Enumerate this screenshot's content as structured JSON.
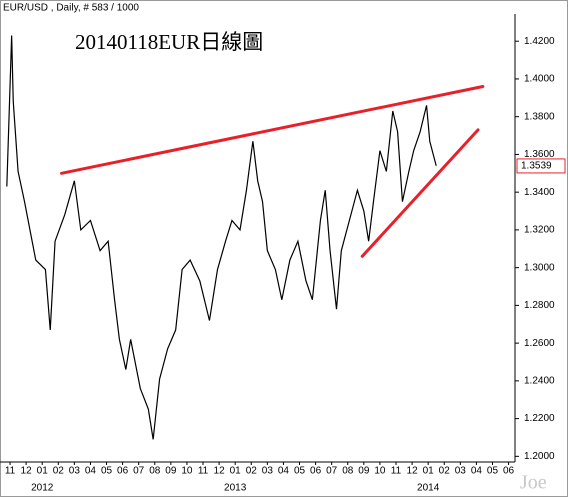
{
  "header": "EUR/USD , Daily, # 583 / 1000",
  "chart_data": {
    "type": "line",
    "title": "20140118EUR日線圖",
    "watermark": "Joe",
    "color": "#000000",
    "x": [
      -0.2,
      0.1,
      0.2,
      0.5,
      0.9,
      1.6,
      2.2,
      2.5,
      2.8,
      3.4,
      4.0,
      4.4,
      5.0,
      5.6,
      6.1,
      6.5,
      6.8,
      7.2,
      7.5,
      8.1,
      8.6,
      8.9,
      9.3,
      9.8,
      10.3,
      10.7,
      11.2,
      11.8,
      12.4,
      12.9,
      13.4,
      13.8,
      14.3,
      14.7,
      15.1,
      15.4,
      15.7,
      16.0,
      16.5,
      16.9,
      17.4,
      17.9,
      18.4,
      18.8,
      19.3,
      19.6,
      19.9,
      20.3,
      20.6,
      21.1,
      21.6,
      22.0,
      22.3,
      22.6,
      23.0,
      23.4,
      23.8,
      24.1,
      24.4,
      24.8,
      25.1,
      25.5,
      25.9,
      26.1,
      26.5
    ],
    "values": [
      1.343,
      1.423,
      1.388,
      1.351,
      1.335,
      1.304,
      1.299,
      1.267,
      1.314,
      1.328,
      1.346,
      1.32,
      1.325,
      1.309,
      1.314,
      1.283,
      1.262,
      1.246,
      1.262,
      1.236,
      1.225,
      1.209,
      1.241,
      1.257,
      1.267,
      1.299,
      1.304,
      1.293,
      1.272,
      1.299,
      1.314,
      1.325,
      1.32,
      1.341,
      1.367,
      1.346,
      1.335,
      1.309,
      1.299,
      1.283,
      1.304,
      1.314,
      1.293,
      1.283,
      1.325,
      1.341,
      1.309,
      1.278,
      1.309,
      1.325,
      1.341,
      1.33,
      1.314,
      1.335,
      1.362,
      1.351,
      1.383,
      1.372,
      1.335,
      1.351,
      1.362,
      1.372,
      1.386,
      1.367,
      1.354
    ],
    "last_price": 1.3539,
    "trend_color": "#e8202a",
    "trend_lines": [
      {
        "x": [
          3.2,
          29.4
        ],
        "values": [
          1.35,
          1.396
        ]
      },
      {
        "x": [
          21.9,
          29.1
        ],
        "values": [
          1.306,
          1.373
        ]
      }
    ],
    "xlim": [
      -0.5,
      31.4
    ],
    "ylim": [
      1.197,
      1.427
    ],
    "yticks": [
      {
        "value": 1.2,
        "label": "1.2000"
      },
      {
        "value": 1.22,
        "label": "1.2200"
      },
      {
        "value": 1.24,
        "label": "1.2400"
      },
      {
        "value": 1.26,
        "label": "1.2600"
      },
      {
        "value": 1.28,
        "label": "1.2800"
      },
      {
        "value": 1.3,
        "label": "1.3000"
      },
      {
        "value": 1.32,
        "label": "1.3200"
      },
      {
        "value": 1.34,
        "label": "1.3400"
      },
      {
        "value": 1.36,
        "label": "1.3600"
      },
      {
        "value": 1.38,
        "label": "1.3800"
      },
      {
        "value": 1.4,
        "label": "1.4000"
      },
      {
        "value": 1.42,
        "label": "1.4200"
      }
    ],
    "xticks": [
      {
        "value": 0,
        "label": "11"
      },
      {
        "value": 1,
        "label": "12"
      },
      {
        "value": 2,
        "label": "01"
      },
      {
        "value": 3,
        "label": "02"
      },
      {
        "value": 4,
        "label": "03"
      },
      {
        "value": 5,
        "label": "04"
      },
      {
        "value": 6,
        "label": "05"
      },
      {
        "value": 7,
        "label": "06"
      },
      {
        "value": 8,
        "label": "07"
      },
      {
        "value": 9,
        "label": "08"
      },
      {
        "value": 10,
        "label": "09"
      },
      {
        "value": 11,
        "label": "10"
      },
      {
        "value": 12,
        "label": "11"
      },
      {
        "value": 13,
        "label": "12"
      },
      {
        "value": 14,
        "label": "01"
      },
      {
        "value": 15,
        "label": "02"
      },
      {
        "value": 16,
        "label": "03"
      },
      {
        "value": 17,
        "label": "04"
      },
      {
        "value": 18,
        "label": "05"
      },
      {
        "value": 19,
        "label": "06"
      },
      {
        "value": 20,
        "label": "07"
      },
      {
        "value": 21,
        "label": "08"
      },
      {
        "value": 22,
        "label": "09"
      },
      {
        "value": 23,
        "label": "10"
      },
      {
        "value": 24,
        "label": "11"
      },
      {
        "value": 25,
        "label": "12"
      },
      {
        "value": 26,
        "label": "01"
      },
      {
        "value": 27,
        "label": "02"
      },
      {
        "value": 28,
        "label": "03"
      },
      {
        "value": 29,
        "label": "04"
      },
      {
        "value": 30,
        "label": "05"
      },
      {
        "value": 31,
        "label": "06"
      }
    ],
    "year_ticks": [
      {
        "value": 2,
        "label": "2012"
      },
      {
        "value": 14,
        "label": "2013"
      },
      {
        "value": 26,
        "label": "2014"
      }
    ]
  }
}
